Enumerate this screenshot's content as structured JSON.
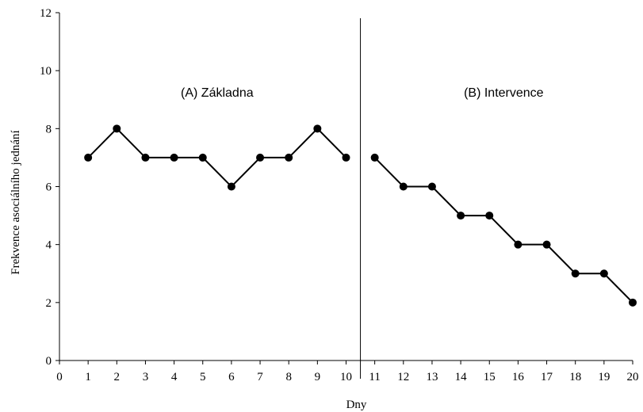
{
  "chart_data": {
    "type": "line",
    "title": "",
    "xlabel": "Dny",
    "ylabel": "Frekvence asociálního jednání",
    "xlim": [
      0,
      20
    ],
    "ylim": [
      0,
      12
    ],
    "x_ticks": [
      0,
      1,
      2,
      3,
      4,
      5,
      6,
      7,
      8,
      9,
      10,
      11,
      12,
      13,
      14,
      15,
      16,
      17,
      18,
      19,
      20
    ],
    "y_ticks": [
      0,
      2,
      4,
      6,
      8,
      10,
      12
    ],
    "grid": false,
    "legend": "none",
    "phase_divider_x": 10.5,
    "series": [
      {
        "x": [
          1,
          2,
          3,
          4,
          5,
          6,
          7,
          8,
          9,
          10
        ],
        "values": [
          7,
          8,
          7,
          7,
          7,
          6,
          7,
          7,
          8,
          7
        ],
        "color": "#000000"
      },
      {
        "x": [
          11,
          12,
          13,
          14,
          15,
          16,
          17,
          18,
          19,
          20
        ],
        "values": [
          7,
          6,
          6,
          5,
          5,
          4,
          4,
          3,
          3,
          2
        ],
        "color": "#000000"
      }
    ],
    "annotations": [
      {
        "text": "(A) Základna",
        "x": 5.5,
        "y": 9.1
      },
      {
        "text": "(B) Intervence",
        "x": 15.5,
        "y": 9.1
      }
    ]
  }
}
